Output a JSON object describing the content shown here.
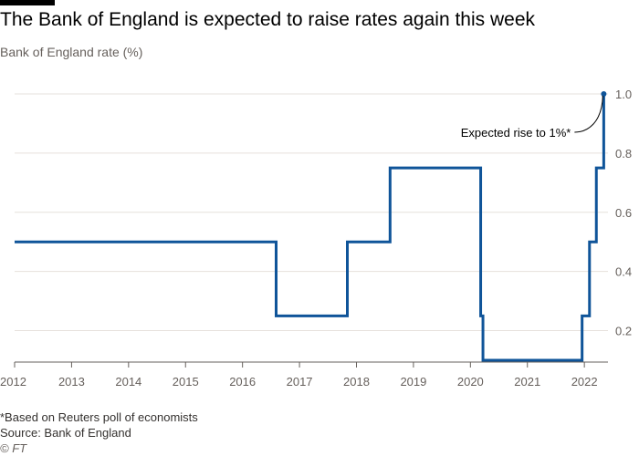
{
  "header": {
    "title": "The Bank of England is expected to raise rates again this week",
    "subtitle": "Bank of England rate (%)"
  },
  "footer": {
    "note": "*Based on Reuters poll of economists",
    "source": "Source: Bank of England",
    "copyright": "© FT"
  },
  "chart_data": {
    "type": "line",
    "title": "The Bank of England is expected to raise rates again this week",
    "ylabel": "Bank of England rate (%)",
    "xlim": [
      2012,
      2022.35
    ],
    "ylim": [
      0.1,
      1.0
    ],
    "x_ticks": [
      2012,
      2013,
      2014,
      2015,
      2016,
      2017,
      2018,
      2019,
      2020,
      2021,
      2022
    ],
    "x_tick_labels": [
      "2012",
      "2013",
      "2014",
      "2015",
      "2016",
      "2017",
      "2018",
      "2019",
      "2020",
      "2021",
      "2022"
    ],
    "y_ticks": [
      0.2,
      0.4,
      0.6,
      0.8,
      1.0
    ],
    "y_tick_labels": [
      "0.2",
      "0.4",
      "0.6",
      "0.8",
      "1.0"
    ],
    "grid": true,
    "step": true,
    "line_color": "#0f5499",
    "series": [
      {
        "x": [
          2012.0,
          2016.59,
          2017.84,
          2018.59,
          2020.18,
          2020.22,
          2021.96,
          2022.09,
          2022.21,
          2022.34
        ],
        "values": [
          0.5,
          0.25,
          0.5,
          0.75,
          0.25,
          0.1,
          0.25,
          0.5,
          0.75,
          1.0
        ]
      }
    ],
    "annotations": [
      {
        "text": "Expected rise to 1%*",
        "x": 2022.34,
        "y": 1.0
      }
    ]
  }
}
